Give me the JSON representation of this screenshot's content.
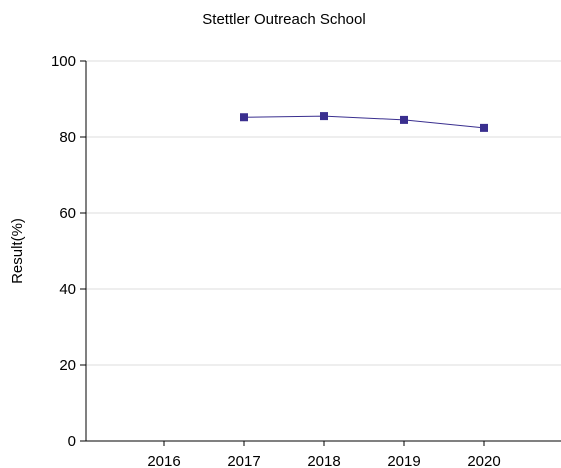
{
  "chart_data": {
    "type": "line",
    "title": "Stettler Outreach School",
    "xlabel": "",
    "ylabel": "Result(%)",
    "x": [
      "2016",
      "2017",
      "2018",
      "2019",
      "2020"
    ],
    "y_ticks": [
      "0",
      "20",
      "40",
      "60",
      "80",
      "100"
    ],
    "ylim": [
      0,
      100
    ],
    "grid": true,
    "series": [
      {
        "name": "",
        "color": "#3a2f8f",
        "values": [
          null,
          85.2,
          85.5,
          84.5,
          82.4
        ]
      }
    ]
  }
}
